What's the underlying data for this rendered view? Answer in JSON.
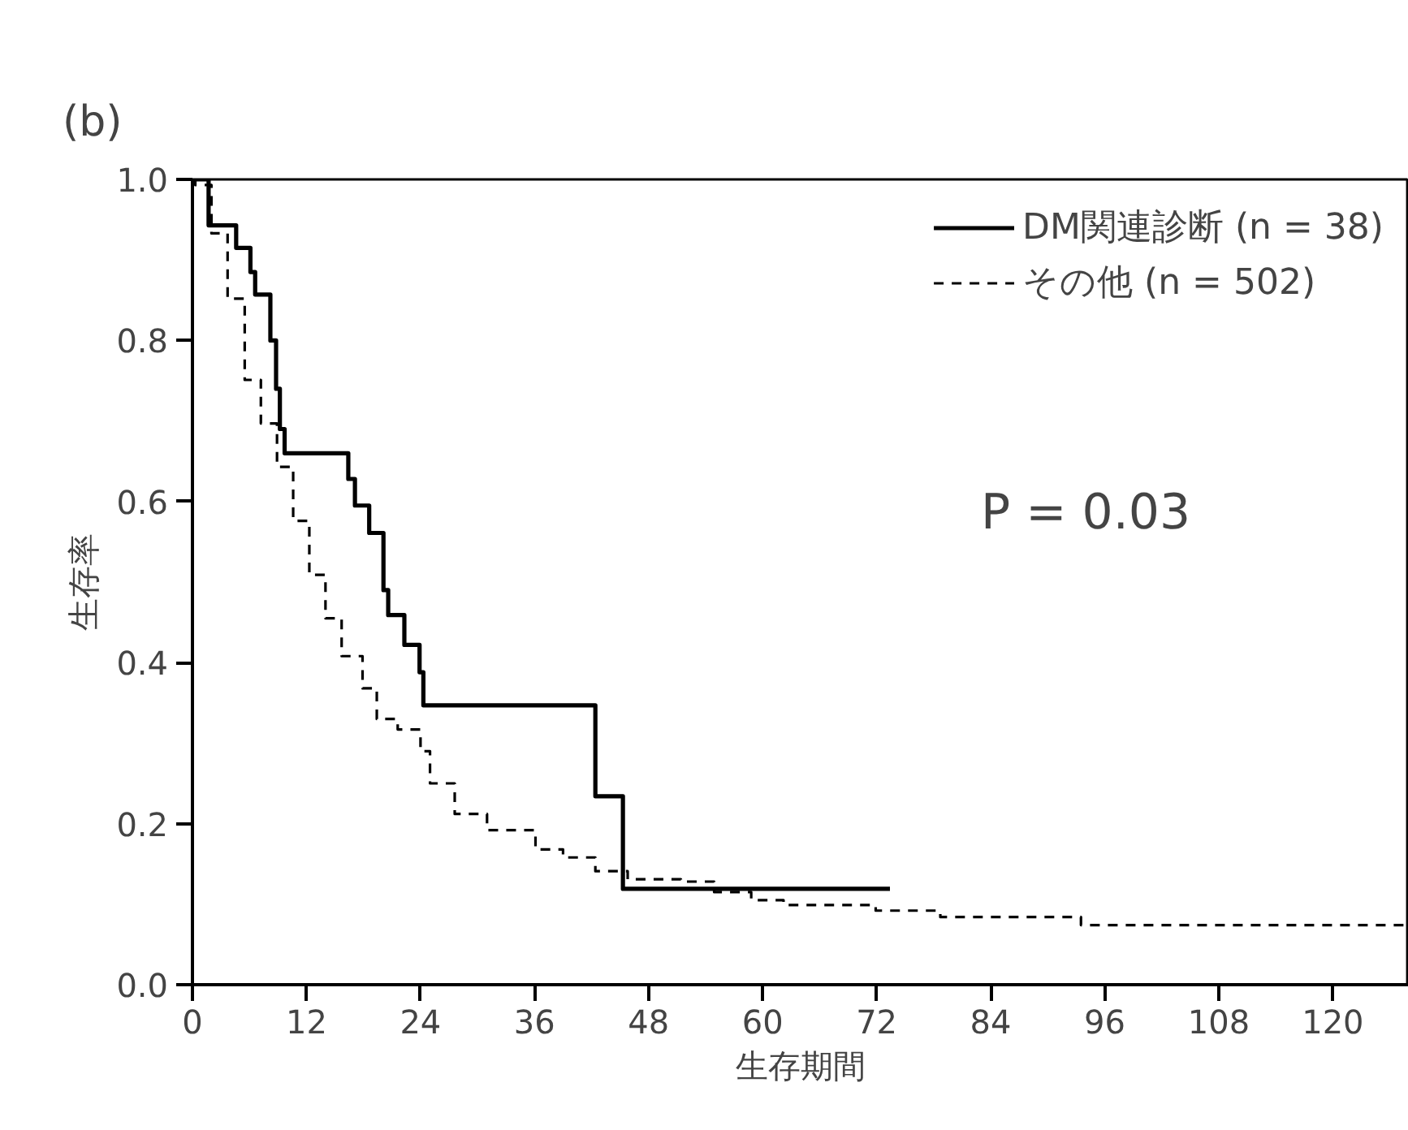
{
  "chart_data": {
    "type": "step",
    "title": "(b)",
    "xlabel": "生存期間",
    "ylabel": "生存率",
    "annotations": [
      "P = 0.03"
    ],
    "xlim": [
      0,
      128
    ],
    "xticks": [
      0,
      12,
      24,
      36,
      48,
      60,
      72,
      84,
      96,
      108,
      120
    ],
    "ylim": [
      0,
      1
    ],
    "yticks": [
      {
        "value": 0,
        "label": "0.0"
      },
      0.2,
      0.4,
      0.6,
      0.8,
      {
        "value": 1,
        "label": "1.0"
      }
    ],
    "grid": false,
    "legend": "top right",
    "series": [
      {
        "name": "DM関連診断 (n = 38)",
        "color": "#000000",
        "line_style": "solid",
        "x": [
          0,
          1.7,
          4.6,
          6.1,
          6.6,
          8.2,
          8.8,
          9.2,
          9.7,
          16.4,
          17.1,
          18.6,
          20.1,
          20.6,
          22.3,
          23.9,
          24.3,
          42.4,
          45.3,
          73.4
        ],
        "values": [
          1.0,
          0.943,
          0.915,
          0.885,
          0.857,
          0.8,
          0.74,
          0.69,
          0.66,
          0.628,
          0.595,
          0.561,
          0.49,
          0.459,
          0.422,
          0.388,
          0.347,
          0.234,
          0.119,
          0.119
        ]
      },
      {
        "name": "その他 (n = 502)",
        "color": "#000000",
        "line_style": "dashed",
        "x": [
          0,
          0.3,
          2.0,
          3.7,
          5.5,
          7.2,
          8.9,
          10.6,
          12.3,
          14.0,
          15.7,
          17.9,
          19.4,
          21.6,
          24,
          25,
          27.6,
          31,
          36.1,
          39,
          42.4,
          45.8,
          51.4,
          54.9,
          58.8,
          62.2,
          71.9,
          78.7,
          93.5,
          127.6
        ],
        "values": [
          1.0,
          0.993,
          0.933,
          0.852,
          0.751,
          0.697,
          0.643,
          0.576,
          0.509,
          0.455,
          0.408,
          0.368,
          0.33,
          0.317,
          0.29,
          0.25,
          0.212,
          0.192,
          0.168,
          0.158,
          0.141,
          0.131,
          0.128,
          0.115,
          0.105,
          0.099,
          0.092,
          0.084,
          0.074,
          0.074
        ]
      }
    ]
  }
}
